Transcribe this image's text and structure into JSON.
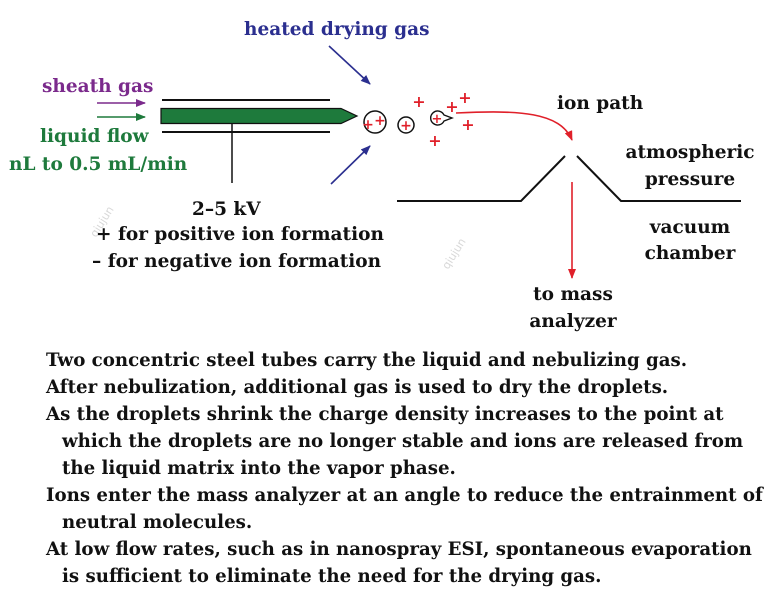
{
  "labels": {
    "heated_drying_gas": "heated drying gas",
    "sheath_gas": "sheath gas",
    "liquid_flow": "liquid flow",
    "flow_rate": "nL to 0.5 mL/min",
    "voltage": "2–5 kV",
    "positive_ion": "+ for positive ion formation",
    "negative_ion": "– for negative ion formation",
    "ion_path": "ion path",
    "atmospheric": "atmospheric",
    "pressure": "pressure",
    "vacuum": "vacuum",
    "chamber": "chamber",
    "to_mass": "to mass",
    "analyzer": "analyzer"
  },
  "charge_symbol": "+",
  "watermark": "qiujun",
  "paragraphs": [
    "Two concentric steel tubes carry the liquid and nebulizing gas.",
    "After nebulization, additional gas is used to dry the droplets.",
    "As the droplets shrink the charge density increases to the point at which the droplets are no longer stable and ions are released from the liquid matrix into the vapor phase.",
    "Ions enter the mass analyzer at an angle to reduce the entrainment of neutral molecules.",
    "At low flow rates, such as in nanospray ESI, spontaneous evaporation is sufficient to eliminate the need for the drying gas."
  ],
  "colors": {
    "drying_gas": "#2b2f8f",
    "sheath_gas": "#7b2a8c",
    "liquid_flow": "#1e7a3c",
    "charge": "#e0202a",
    "ion_path": "#e0202a",
    "text": "#111111"
  }
}
